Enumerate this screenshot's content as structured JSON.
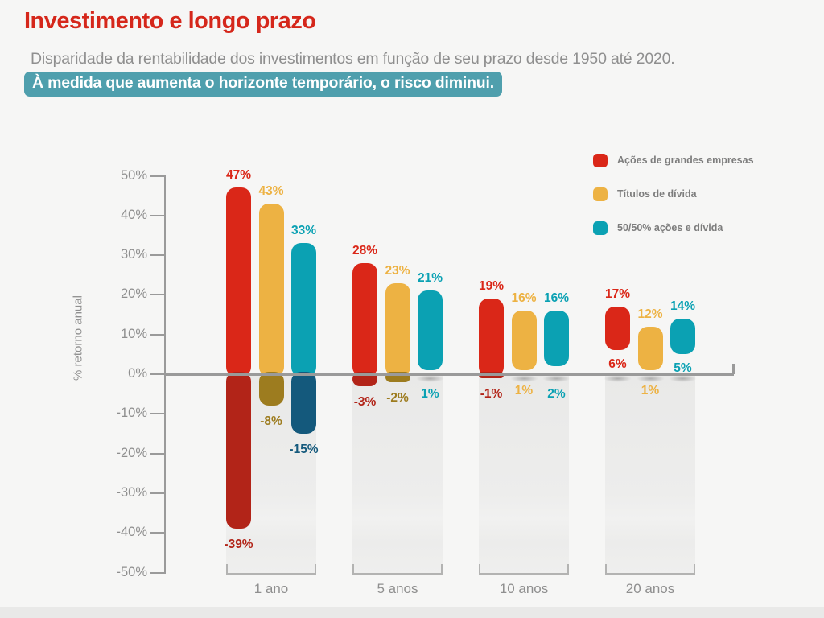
{
  "header": {
    "title": "Investimento e longo prazo",
    "subtitle": "Disparidade da rentabilidade dos investimentos em função de seu prazo desde 1950 até 2020.",
    "highlight": "À medida que aumenta o horizonte temporário, o risco diminui."
  },
  "colors": {
    "title": "#d5271b",
    "subtitle_text": "#8f8f8f",
    "highlight_bg": "#4f9fad",
    "highlight_text": "#ffffff",
    "axis": "#9a9a9a",
    "background": "#f6f6f5",
    "bottom_strip": "#e9e9e8"
  },
  "chart_data": {
    "type": "bar",
    "subtype": "floating-range-columns",
    "title": "",
    "unit": "%",
    "xlabel": "",
    "ylabel": "% retorno anual",
    "ylim": [
      -50,
      50
    ],
    "ytick_values": [
      50,
      40,
      30,
      20,
      10,
      0,
      -10,
      -20,
      -30,
      -40,
      -50
    ],
    "ytick_labels": [
      "50%",
      "40%",
      "30%",
      "20%",
      "10%",
      "0%",
      "-10%",
      "-20%",
      "-30%",
      "-40%",
      "-50%"
    ],
    "categories": [
      "1 ano",
      "5 anos",
      "10 anos",
      "20 anos"
    ],
    "grid": false,
    "legend_position": "top-right",
    "series": [
      {
        "name": "Ações de grandes empresas",
        "color": "#da2718",
        "color_negative": "#b22418",
        "ranges": [
          {
            "high": 47,
            "low": -39
          },
          {
            "high": 28,
            "low": -3
          },
          {
            "high": 19,
            "low": -1
          },
          {
            "high": 17,
            "low": 6
          }
        ]
      },
      {
        "name": "Títulos de dívida",
        "color": "#edb243",
        "color_negative": "#9d7c1f",
        "ranges": [
          {
            "high": 43,
            "low": -8
          },
          {
            "high": 23,
            "low": -2
          },
          {
            "high": 16,
            "low": 1
          },
          {
            "high": 12,
            "low": 1
          }
        ]
      },
      {
        "name": "50/50% ações e dívida",
        "color": "#0ba1b3",
        "color_negative": "#14597c",
        "ranges": [
          {
            "high": 33,
            "low": -15
          },
          {
            "high": 21,
            "low": 1
          },
          {
            "high": 16,
            "low": 2
          },
          {
            "high": 14,
            "low": 5
          }
        ]
      }
    ]
  }
}
